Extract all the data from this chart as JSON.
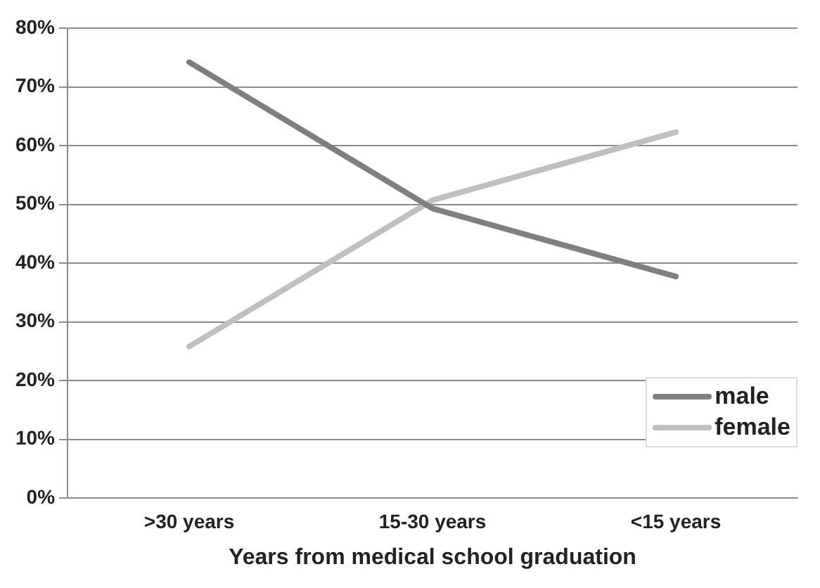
{
  "chart_data": {
    "type": "line",
    "xlabel": "Years from medical school graduation",
    "categories": [
      ">30 years",
      "15-30 years",
      "<15 years"
    ],
    "series": [
      {
        "name": "male",
        "color": "#7f7f83",
        "values": [
          74.2,
          49.3,
          37.7
        ]
      },
      {
        "name": "female",
        "color": "#bfbfc1",
        "values": [
          25.8,
          50.7,
          62.3
        ]
      }
    ],
    "ylim": [
      0,
      80
    ],
    "yticks": [
      {
        "value": 0,
        "label": "0%"
      },
      {
        "value": 10,
        "label": "10%"
      },
      {
        "value": 20,
        "label": "20%"
      },
      {
        "value": 30,
        "label": "30%"
      },
      {
        "value": 40,
        "label": "40%"
      },
      {
        "value": 50,
        "label": "50%"
      },
      {
        "value": 60,
        "label": "60%"
      },
      {
        "value": 70,
        "label": "70%"
      },
      {
        "value": 80,
        "label": "80%"
      }
    ],
    "grid": "y",
    "legend": "bottom right",
    "marker": "none",
    "line_style": "solid"
  }
}
